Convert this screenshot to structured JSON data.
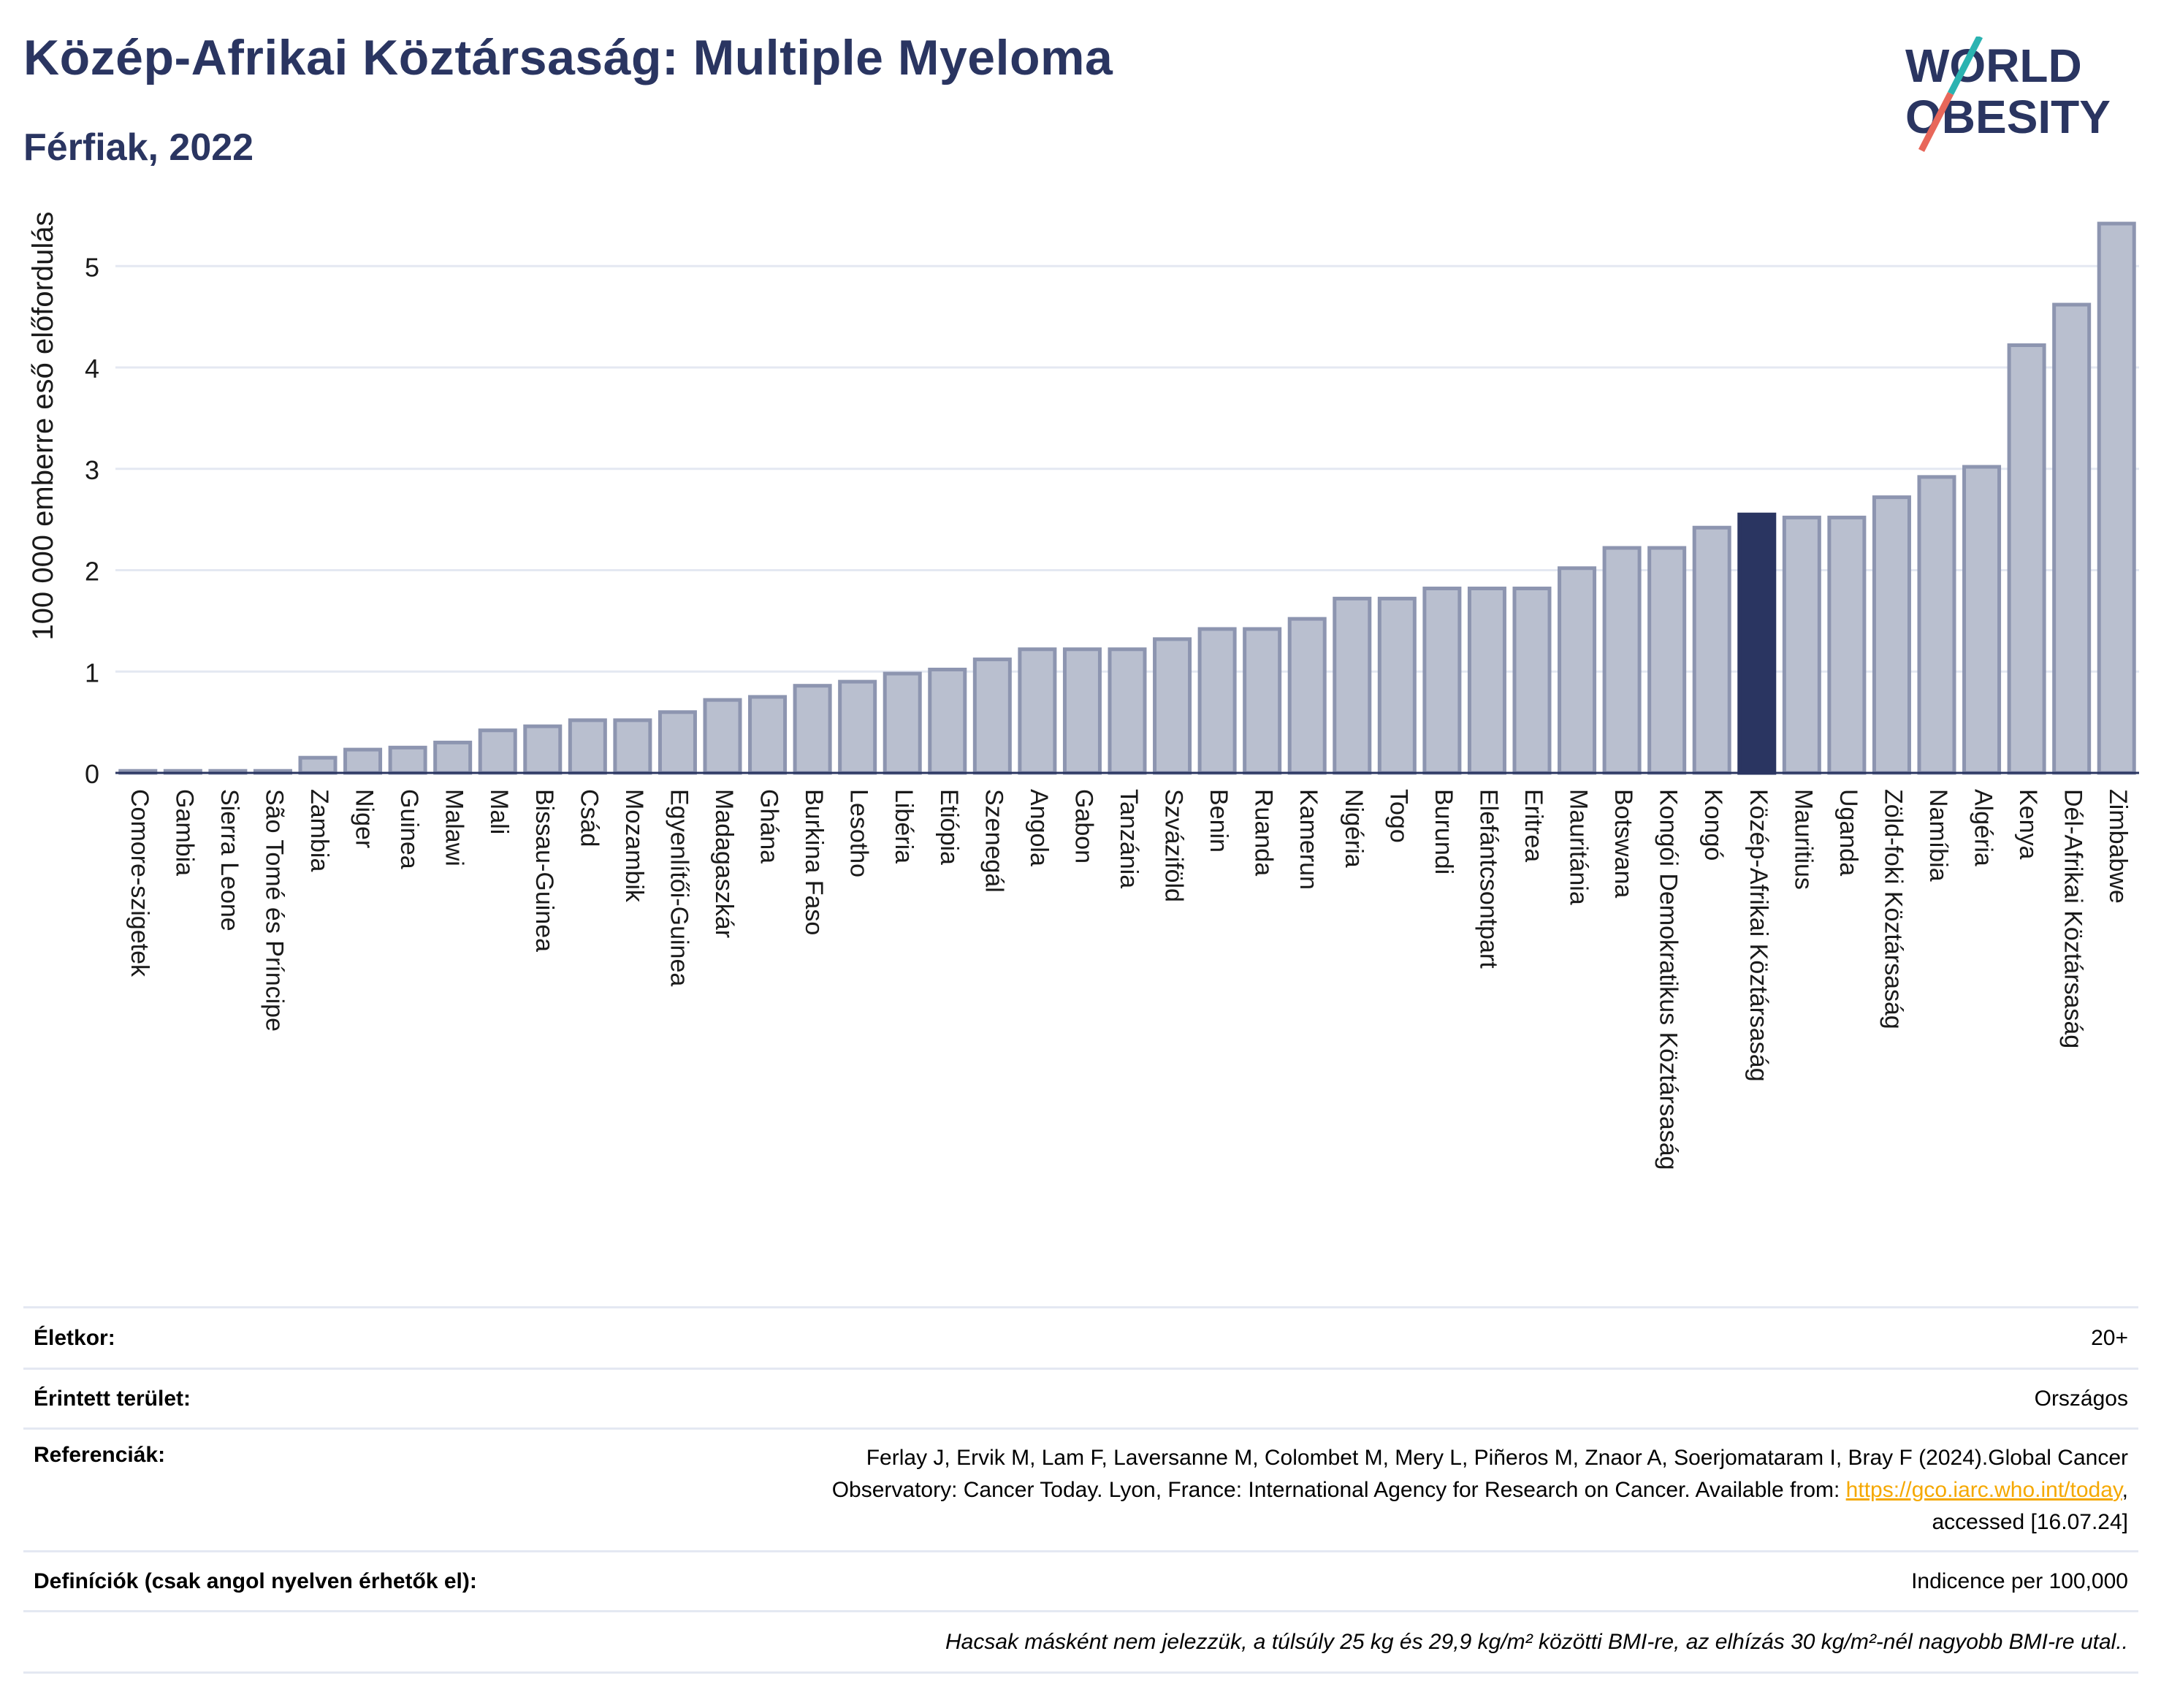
{
  "header": {
    "title": "Közép-Afrikai Köztársaság: Multiple Myeloma",
    "subtitle": "Férfiak, 2022"
  },
  "logo": {
    "line1": "WORLD",
    "line2": "OBESITY"
  },
  "colors": {
    "title": "#2a3561",
    "bar": "#b9bfcf",
    "bar_border": "#8d95b0",
    "highlight": "#2a3561",
    "grid": "#e4e8f2",
    "link": "#f5a800",
    "logo_teal": "#2bb3b1",
    "logo_red": "#e8675a"
  },
  "chart_data": {
    "type": "bar",
    "ylabel": "100 000 emberre eső előfordulás",
    "ylim": [
      0,
      5.55
    ],
    "yticks": [
      0,
      1,
      2,
      3,
      4,
      5
    ],
    "highlight": "Közép-Afrikai Köztársaság",
    "grid": true,
    "categories": [
      "Comore-szigetek",
      "Gambia",
      "Sierra Leone",
      "São Tomé és Príncipe",
      "Zambia",
      "Niger",
      "Guinea",
      "Malawi",
      "Mali",
      "Bissau-Guinea",
      "Csád",
      "Mozambik",
      "Egyenlítői-Guinea",
      "Madagaszkár",
      "Ghána",
      "Burkina Faso",
      "Lesotho",
      "Libéria",
      "Etiópia",
      "Szenegál",
      "Angola",
      "Gabon",
      "Tanzánia",
      "Szváziföld",
      "Benin",
      "Ruanda",
      "Kamerun",
      "Nigéria",
      "Togo",
      "Burundi",
      "Elefántcsontpart",
      "Eritrea",
      "Mauritánia",
      "Botswana",
      "Kongói Demokratikus Köztársaság",
      "Kongó",
      "Közép-Afrikai Köztársaság",
      "Mauritius",
      "Uganda",
      "Zöld-foki Köztársaság",
      "Namíbia",
      "Algéria",
      "Kenya",
      "Dél-Afrikai Köztársaság",
      "Zimbabwe"
    ],
    "values": [
      0.02,
      0.02,
      0.02,
      0.02,
      0.15,
      0.23,
      0.25,
      0.3,
      0.42,
      0.46,
      0.52,
      0.52,
      0.6,
      0.72,
      0.75,
      0.86,
      0.9,
      0.98,
      1.02,
      1.12,
      1.22,
      1.22,
      1.22,
      1.32,
      1.42,
      1.42,
      1.52,
      1.72,
      1.72,
      1.82,
      1.82,
      1.82,
      2.02,
      2.22,
      2.22,
      2.42,
      2.55,
      2.52,
      2.52,
      2.72,
      2.92,
      3.02,
      4.22,
      4.62,
      5.42
    ]
  },
  "meta": {
    "age": {
      "label": "Életkor:",
      "value": "20+"
    },
    "area": {
      "label": "Érintett terület:",
      "value": "Országos"
    },
    "refs": {
      "label": "Referenciák:",
      "line1": "Ferlay J, Ervik M, Lam F, Laversanne M, Colombet M, Mery L, Piñeros M, Znaor A, Soerjomataram I, Bray F (2024).Global Cancer",
      "line2": "Observatory: Cancer Today. Lyon, France: International Agency for Research on Cancer. Available from: ",
      "link": "https://gco.iarc.who.int/today",
      "line2_after": ",",
      "line3": "accessed [16.07.24]"
    },
    "defs": {
      "label": "Definíciók (csak angol nyelven érhetők el):",
      "value": "Indicence per 100,000"
    },
    "note": "Hacsak másként nem jelezzük, a túlsúly 25 kg és 29,9 kg/m² közötti BMI-re, az elhízás 30 kg/m²-nél nagyobb BMI-re utal.."
  }
}
